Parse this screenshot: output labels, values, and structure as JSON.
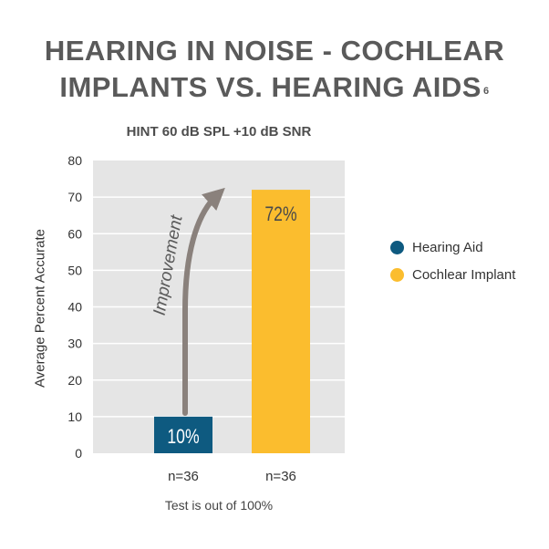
{
  "title_line1": "HEARING IN NOISE - COCHLEAR",
  "title_line2": "IMPLANTS VS. HEARING AIDS",
  "title_footnote_ref": "6",
  "footnote": "Test is out of 100%",
  "annotation": "Improvement",
  "colors": {
    "plot_bg": "#e5e5e5",
    "grid": "#ffffff",
    "arrow": "#8a817c",
    "hearing_aid": "#0e5a80",
    "cochlear_implant": "#fbbd2e"
  },
  "chart_data": {
    "type": "bar",
    "title": "HINT 60 dB SPL +10 dB SNR",
    "ylabel": "Average Percent Accurate",
    "xlabel": "",
    "ylim": [
      0,
      80
    ],
    "yticks": [
      0,
      10,
      20,
      30,
      40,
      50,
      60,
      70,
      80
    ],
    "categories": [
      "n=36",
      "n=36"
    ],
    "values": [
      10,
      72
    ],
    "data_labels": [
      "10%",
      "72%"
    ],
    "series_names": [
      "Hearing Aid",
      "Cochlear Implant"
    ],
    "grid": true,
    "legend_position": "right"
  }
}
